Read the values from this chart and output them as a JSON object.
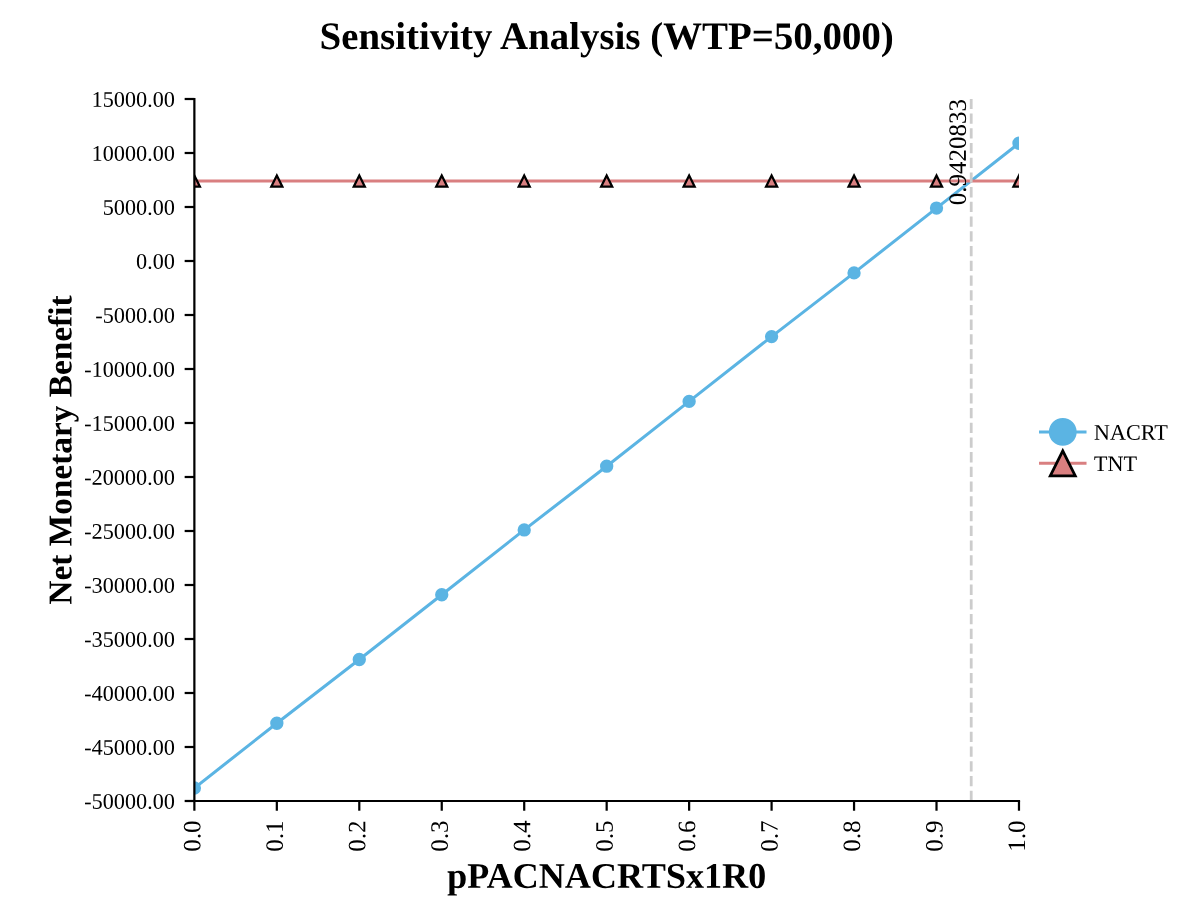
{
  "chart_data": {
    "type": "line",
    "title": "Sensitivity Analysis (WTP=50,000)",
    "xlabel": "pPACNACRTSx1R0",
    "ylabel": "Net Monetary Benefit",
    "x": [
      0.0,
      0.1,
      0.2,
      0.3,
      0.4,
      0.5,
      0.6,
      0.7,
      0.8,
      0.9,
      1.0
    ],
    "series": [
      {
        "name": "NACRT",
        "color": "#5bb4e3",
        "marker": "circle",
        "values": [
          -48800,
          -42800,
          -36900,
          -30900,
          -24900,
          -19000,
          -13000,
          -7000,
          -1100,
          4900,
          10900
        ]
      },
      {
        "name": "TNT",
        "color": "#d97f80",
        "marker": "triangle",
        "values": [
          7400,
          7400,
          7400,
          7400,
          7400,
          7400,
          7400,
          7400,
          7400,
          7400,
          7400
        ]
      }
    ],
    "xlim": [
      0.0,
      1.0
    ],
    "xticks": [
      {
        "value": 0.0,
        "label": "0.0"
      },
      {
        "value": 0.1,
        "label": "0.1"
      },
      {
        "value": 0.2,
        "label": "0.2"
      },
      {
        "value": 0.3,
        "label": "0.3"
      },
      {
        "value": 0.4,
        "label": "0.4"
      },
      {
        "value": 0.5,
        "label": "0.5"
      },
      {
        "value": 0.6,
        "label": "0.6"
      },
      {
        "value": 0.7,
        "label": "0.7"
      },
      {
        "value": 0.8,
        "label": "0.8"
      },
      {
        "value": 0.9,
        "label": "0.9"
      },
      {
        "value": 1.0,
        "label": "1.0"
      }
    ],
    "ylim": [
      -50000,
      15000
    ],
    "yticks": [
      {
        "value": -50000,
        "label": "-50000.00"
      },
      {
        "value": -45000,
        "label": "-45000.00"
      },
      {
        "value": -40000,
        "label": "-40000.00"
      },
      {
        "value": -35000,
        "label": "-35000.00"
      },
      {
        "value": -30000,
        "label": "-30000.00"
      },
      {
        "value": -25000,
        "label": "-25000.00"
      },
      {
        "value": -20000,
        "label": "-20000.00"
      },
      {
        "value": -15000,
        "label": "-15000.00"
      },
      {
        "value": -10000,
        "label": "-10000.00"
      },
      {
        "value": -5000,
        "label": "-5000.00"
      },
      {
        "value": 0,
        "label": "0.00"
      },
      {
        "value": 5000,
        "label": "5000.00"
      },
      {
        "value": 10000,
        "label": "10000.00"
      },
      {
        "value": 15000,
        "label": "15000.00"
      }
    ],
    "ref_lines": [
      {
        "axis": "x",
        "value": 0.9420833,
        "label": "0.9420833",
        "color": "#cccccc",
        "line_style": "dashed"
      }
    ],
    "grid": false,
    "legend": "right",
    "line_style": "solid"
  }
}
